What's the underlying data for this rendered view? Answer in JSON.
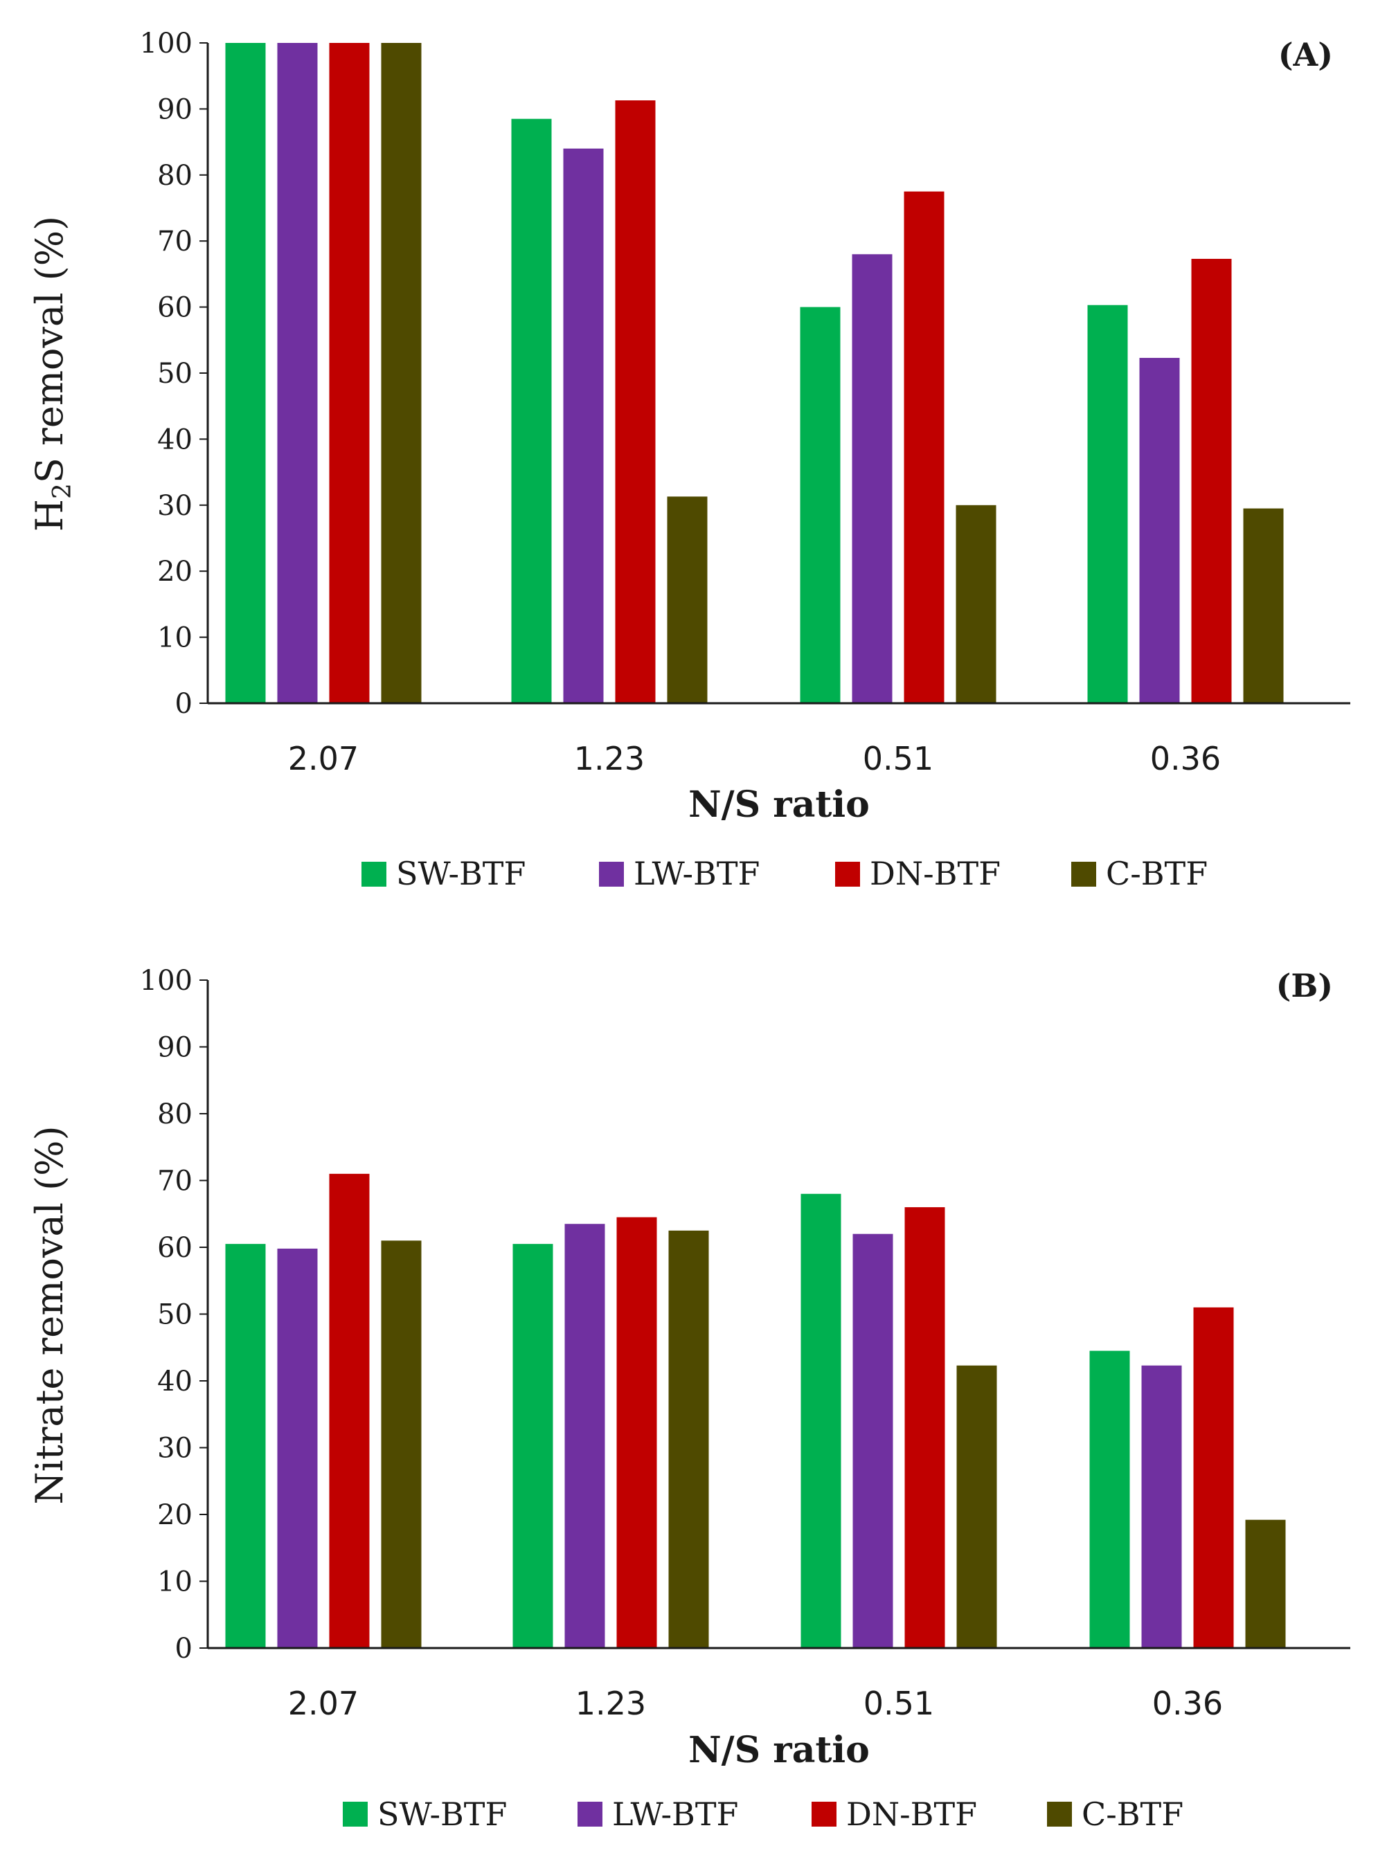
{
  "colors": {
    "SW-BTF": "#00b050",
    "LW-BTF": "#7030a0",
    "DN-BTF": "#c00000",
    "C-BTF": "#4f4a00"
  },
  "chart_data": [
    {
      "type": "bar",
      "panel_label": "(A)",
      "categories": [
        "2.07",
        "1.23",
        "0.51",
        "0.36"
      ],
      "series": [
        {
          "name": "SW-BTF",
          "values": [
            100,
            88.5,
            60,
            60.3
          ]
        },
        {
          "name": "LW-BTF",
          "values": [
            100,
            84,
            68,
            52.3
          ]
        },
        {
          "name": "DN-BTF",
          "values": [
            100,
            91.3,
            77.5,
            67.3
          ]
        },
        {
          "name": "C-BTF",
          "values": [
            100,
            31.3,
            30,
            29.5
          ]
        }
      ],
      "xlabel": "N/S ratio",
      "ylabel_parts": [
        "H",
        "2",
        "S removal (%)"
      ],
      "ylim": [
        0,
        100
      ],
      "yticks": [
        "0",
        "10",
        "20",
        "30",
        "40",
        "50",
        "60",
        "70",
        "80",
        "90",
        "100"
      ],
      "legend": [
        "SW-BTF",
        "LW-BTF",
        "DN-BTF",
        "C-BTF"
      ],
      "grid": false
    },
    {
      "type": "bar",
      "panel_label": "(B)",
      "categories": [
        "2.07",
        "1.23",
        "0.51",
        "0.36"
      ],
      "series": [
        {
          "name": "SW-BTF",
          "values": [
            60.5,
            60.5,
            68,
            44.5
          ]
        },
        {
          "name": "LW-BTF",
          "values": [
            59.8,
            63.5,
            62,
            42.3
          ]
        },
        {
          "name": "DN-BTF",
          "values": [
            71,
            64.5,
            66,
            51
          ]
        },
        {
          "name": "C-BTF",
          "values": [
            61,
            62.5,
            42.3,
            19.2
          ]
        }
      ],
      "xlabel": "N/S ratio",
      "ylabel": "Nitrate removal (%)",
      "ylim": [
        0,
        100
      ],
      "yticks": [
        "0",
        "10",
        "20",
        "30",
        "40",
        "50",
        "60",
        "70",
        "80",
        "90",
        "100"
      ],
      "legend": [
        "SW-BTF",
        "LW-BTF",
        "DN-BTF",
        "C-BTF"
      ],
      "grid": false
    }
  ]
}
